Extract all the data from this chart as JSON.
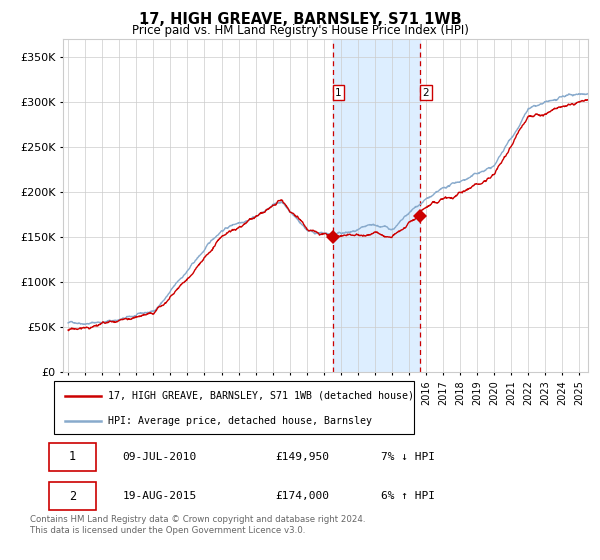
{
  "title": "17, HIGH GREAVE, BARNSLEY, S71 1WB",
  "subtitle": "Price paid vs. HM Land Registry's House Price Index (HPI)",
  "footer": "Contains HM Land Registry data © Crown copyright and database right 2024.\nThis data is licensed under the Open Government Licence v3.0.",
  "legend_line1": "17, HIGH GREAVE, BARNSLEY, S71 1WB (detached house)",
  "legend_line2": "HPI: Average price, detached house, Barnsley",
  "sale1_label": "1",
  "sale1_date": "09-JUL-2010",
  "sale1_price": "£149,950",
  "sale1_pct": "7% ↓ HPI",
  "sale2_label": "2",
  "sale2_date": "19-AUG-2015",
  "sale2_price": "£174,000",
  "sale2_pct": "6% ↑ HPI",
  "sale1_year": 2010.52,
  "sale1_value": 149950,
  "sale2_year": 2015.63,
  "sale2_value": 174000,
  "ylim": [
    0,
    370000
  ],
  "xlim_start": 1994.7,
  "xlim_end": 2025.5,
  "red_color": "#cc0000",
  "blue_color": "#88aacc",
  "shade_color": "#ddeeff",
  "grid_color": "#cccccc",
  "bg_color": "#ffffff"
}
